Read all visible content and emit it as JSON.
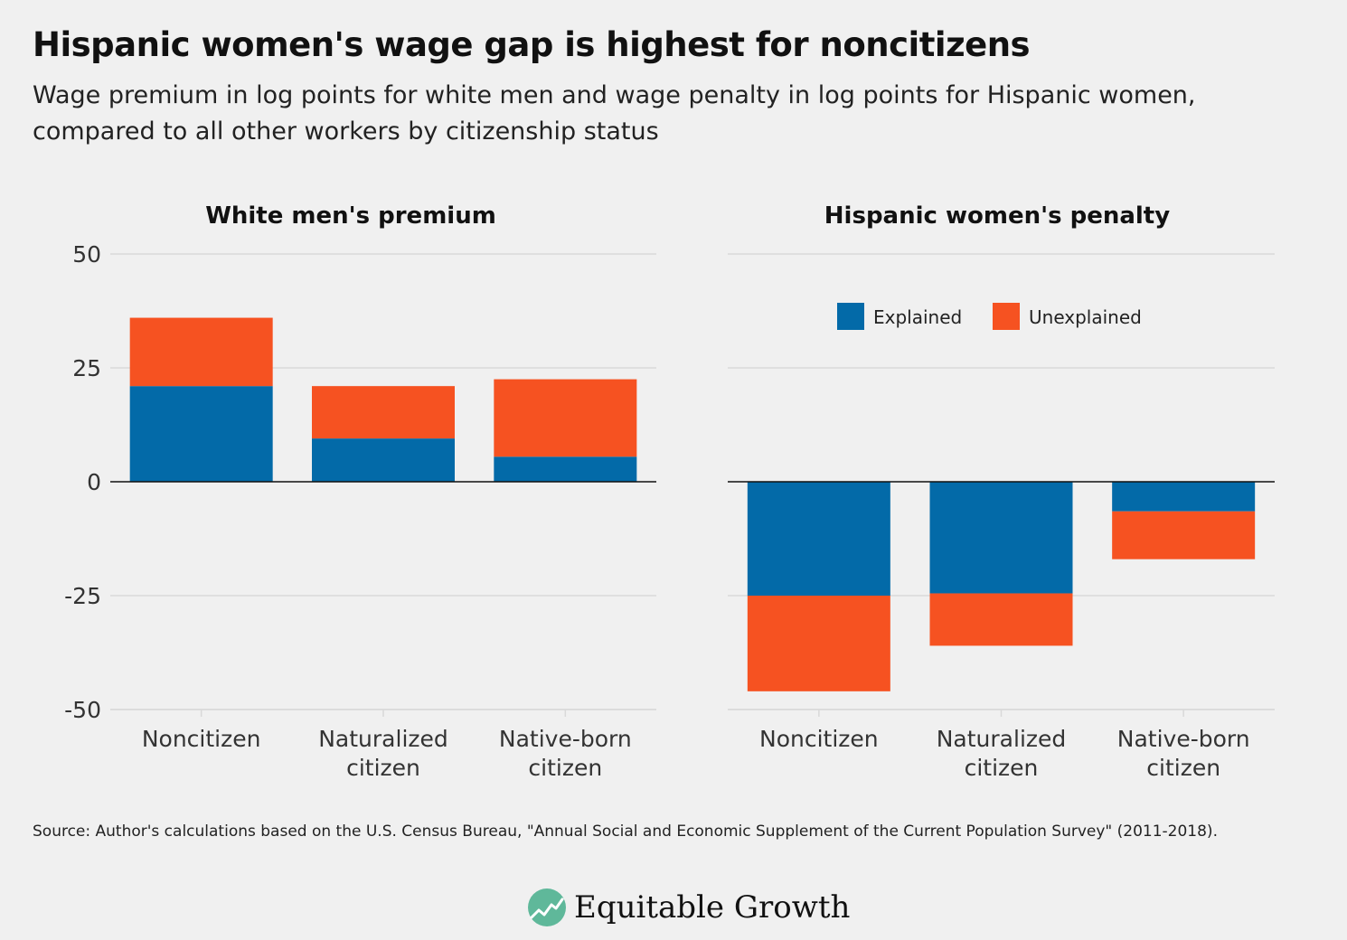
{
  "title": "Hispanic women's wage gap is highest for noncitizens",
  "subtitle": "Wage premium in log points for white men and wage penalty in log points for Hispanic women, compared to all other workers by citizenship status",
  "source": "Source: Author's calculations based on the U.S. Census Bureau, \"Annual Social and Economic Supplement of the Current Population Survey\" (2011-2018).",
  "logo": {
    "text": "Equitable Growth",
    "icon": "growth-chart-icon"
  },
  "colors": {
    "explained": "#036aa8",
    "unexplained": "#f65221",
    "grid": "#d9d9d9",
    "zero_line": "#111111",
    "background": "#f0f0f0"
  },
  "chart_data": [
    {
      "type": "bar",
      "stacked": true,
      "title": "White men's premium",
      "categories": [
        "Noncitizen",
        "Naturalized citizen",
        "Native-born citizen"
      ],
      "series": [
        {
          "name": "Explained",
          "values": [
            21,
            9.5,
            5.5
          ]
        },
        {
          "name": "Unexplained",
          "values": [
            15,
            11.5,
            17
          ]
        }
      ],
      "ylim": [
        -50,
        50
      ],
      "yticks": [
        "50",
        "25",
        "0",
        "-25",
        "-50"
      ],
      "grid": true
    },
    {
      "type": "bar",
      "stacked": true,
      "title": "Hispanic women's penalty",
      "categories": [
        "Noncitizen",
        "Naturalized citizen",
        "Native-born citizen"
      ],
      "series": [
        {
          "name": "Explained",
          "values": [
            -25,
            -24.5,
            -6.5
          ]
        },
        {
          "name": "Unexplained",
          "values": [
            -21,
            -11.5,
            -10.5
          ]
        }
      ],
      "ylim": [
        -50,
        50
      ],
      "grid": true,
      "legend": {
        "position": "top-center",
        "entries": [
          "Explained",
          "Unexplained"
        ]
      }
    }
  ]
}
